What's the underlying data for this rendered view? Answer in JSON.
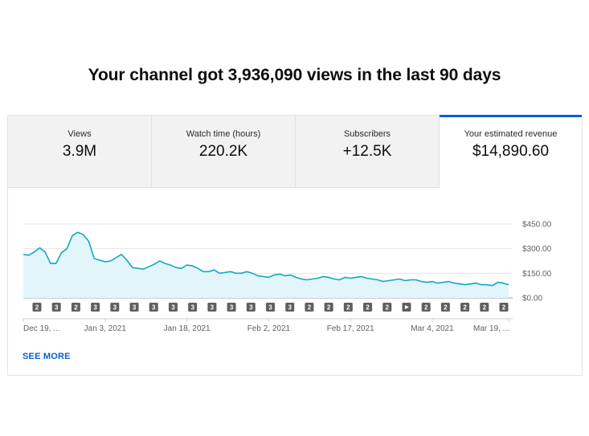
{
  "headline": "Your channel got 3,936,090 views in the last 90 days",
  "tabs": [
    {
      "label": "Views",
      "value": "3.9M"
    },
    {
      "label": "Watch time (hours)",
      "value": "220.2K"
    },
    {
      "label": "Subscribers",
      "value": "+12.5K"
    },
    {
      "label": "Your estimated revenue",
      "value": "$14,890.60"
    }
  ],
  "selected_tab": "Your estimated revenue",
  "see_more_label": "SEE MORE",
  "colors": {
    "line": "#14a7c6",
    "fill": "#e1f5fb",
    "accent": "#065fd4",
    "marker": "#5f5f5f"
  },
  "chart_data": {
    "type": "area",
    "title": "",
    "xlabel": "",
    "ylabel": "",
    "ylim": [
      0,
      450
    ],
    "y_ticks": [
      "$450.00",
      "$300.00",
      "$150.00",
      "$0.00"
    ],
    "y_tick_values": [
      450,
      300,
      150,
      0
    ],
    "x_ticks": [
      "Dec 19, ...",
      "Jan 3, 2021",
      "Jan 18, 2021",
      "Feb 2, 2021",
      "Feb 17, 2021",
      "Mar 4, 2021",
      "Mar 19, ..."
    ],
    "x_tick_index": [
      0,
      15,
      30,
      45,
      60,
      75,
      89
    ],
    "grid": true,
    "series": [
      {
        "values": [
          265,
          260,
          280,
          305,
          280,
          210,
          210,
          275,
          300,
          380,
          400,
          385,
          345,
          240,
          230,
          220,
          225,
          245,
          265,
          230,
          185,
          180,
          175,
          190,
          205,
          225,
          210,
          200,
          185,
          180,
          200,
          195,
          180,
          160,
          160,
          170,
          150,
          155,
          160,
          150,
          150,
          160,
          150,
          135,
          130,
          125,
          140,
          145,
          135,
          140,
          125,
          115,
          110,
          115,
          120,
          130,
          125,
          115,
          110,
          125,
          120,
          125,
          130,
          120,
          115,
          110,
          100,
          105,
          110,
          115,
          105,
          110,
          110,
          100,
          95,
          100,
          90,
          95,
          100,
          90,
          85,
          80,
          85,
          90,
          80,
          80,
          75,
          95,
          90,
          80
        ]
      }
    ],
    "event_markers": [
      "2",
      "3",
      "2",
      "3",
      "3",
      "3",
      "3",
      "3",
      "3",
      "3",
      "3",
      "3",
      "3",
      "3",
      "2",
      "2",
      "2",
      "2",
      "2",
      "play",
      "2",
      "2",
      "2",
      "2",
      "2"
    ]
  }
}
